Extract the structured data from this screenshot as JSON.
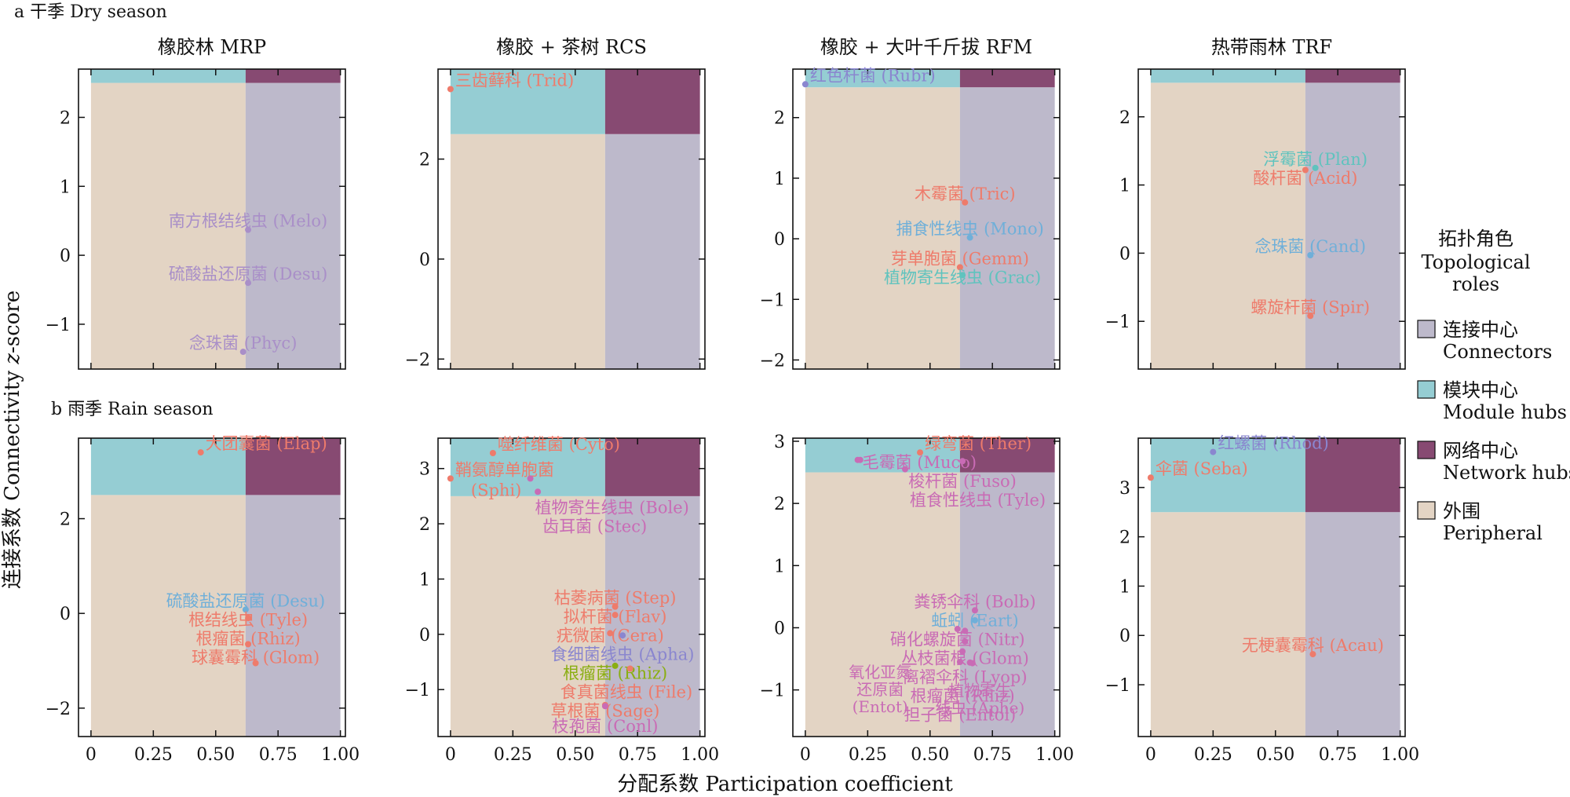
{
  "figure": {
    "row_labels": [
      "a 干季 Dry season",
      "b 雨季 Rain season"
    ],
    "xlabel": "分配系数 Participation coefficient",
    "ylabel_prefix": "连接系数 Connectivity ",
    "ylabel_italic": "z",
    "ylabel_suffix": "-score",
    "x_tick_labels": [
      "0",
      "0.25",
      "0.50",
      "0.75",
      "1.00"
    ]
  },
  "colors": {
    "peripheral": "#E3D4C4",
    "connectors": "#BDB9CB",
    "module_hubs": "#95CDD3",
    "network_hubs": "#874A72",
    "red": "#EE7B6B",
    "purple": "#A98FC8",
    "teal": "#5FC3BE",
    "blue": "#6FAFD9",
    "violet": "#8A86CF",
    "pink": "#C96BB5",
    "green": "#8AAE12"
  },
  "legend": {
    "title_cn": "拓扑角色",
    "title_en_1": "Topological",
    "title_en_2": "roles",
    "items": [
      {
        "cn": "连接中心",
        "en": "Connectors",
        "color": "#BDB9CB"
      },
      {
        "cn": "模块中心",
        "en": "Module hubs",
        "color": "#95CDD3"
      },
      {
        "cn": "网络中心",
        "en": "Network hubs",
        "color": "#874A72"
      },
      {
        "cn": "外围",
        "en": "Peripheral",
        "color": "#E3D4C4"
      }
    ]
  },
  "chart_data": [
    {
      "type": "scatter",
      "title": "橡胶林 MRP",
      "season": "Dry",
      "xlim": [
        -0.05,
        1.02
      ],
      "ylim": [
        -1.65,
        2.7
      ],
      "y_ticks": [
        -1,
        0,
        1,
        2
      ],
      "points": [
        {
          "x": 0.63,
          "y": 0.37,
          "label": "南方根结线虫 (Melo)",
          "color": "purple"
        },
        {
          "x": 0.63,
          "y": -0.4,
          "label": "硫酸盐还原菌 (Desu)",
          "color": "purple"
        },
        {
          "x": 0.61,
          "y": -1.4,
          "label": "念珠菌 (Phyc)",
          "color": "purple"
        }
      ]
    },
    {
      "type": "scatter",
      "title": "橡胶 + 茶树 RCS",
      "season": "Dry",
      "xlim": [
        -0.05,
        1.02
      ],
      "ylim": [
        -2.2,
        3.8
      ],
      "y_ticks": [
        -2,
        0,
        2
      ],
      "points": [
        {
          "x": 0.0,
          "y": 3.4,
          "label": "三齿藓科 (Trid)",
          "color": "red"
        }
      ]
    },
    {
      "type": "scatter",
      "title": "橡胶 + 大叶千斤拔 RFM",
      "season": "Dry",
      "xlim": [
        -0.05,
        1.02
      ],
      "ylim": [
        -2.15,
        2.8
      ],
      "y_ticks": [
        -2,
        -1,
        0,
        1,
        2
      ],
      "points": [
        {
          "x": 0.0,
          "y": 2.55,
          "label": "红色杆菌 (Rubr)",
          "color": "violet"
        },
        {
          "x": 0.64,
          "y": 0.6,
          "label": "木霉菌 (Tric)",
          "color": "red"
        },
        {
          "x": 0.66,
          "y": 0.02,
          "label": "捕食性线虫 (Mono)",
          "color": "blue"
        },
        {
          "x": 0.62,
          "y": -0.47,
          "label": "芽单胞菌 (Gemm)",
          "color": "red"
        },
        {
          "x": 0.63,
          "y": -0.6,
          "label": "植物寄生线虫 (Grac)",
          "color": "teal"
        }
      ]
    },
    {
      "type": "scatter",
      "title": "热带雨林 TRF",
      "season": "Dry",
      "xlim": [
        -0.05,
        1.02
      ],
      "ylim": [
        -1.7,
        2.7
      ],
      "y_ticks": [
        -1,
        0,
        1,
        2
      ],
      "points": [
        {
          "x": 0.66,
          "y": 1.25,
          "label": "浮霉菌 (Plan)",
          "color": "teal"
        },
        {
          "x": 0.62,
          "y": 1.22,
          "label": "酸杆菌 (Acid)",
          "color": "red"
        },
        {
          "x": 0.64,
          "y": -0.03,
          "label": "念珠菌 (Cand)",
          "color": "blue"
        },
        {
          "x": 0.64,
          "y": -0.92,
          "label": "螺旋杆菌 (Spir)",
          "color": "red"
        }
      ]
    },
    {
      "type": "scatter",
      "title": "",
      "season": "Rain",
      "xlim": [
        -0.05,
        1.02
      ],
      "ylim": [
        -2.6,
        3.7
      ],
      "y_ticks": [
        -2,
        0,
        2
      ],
      "points": [
        {
          "x": 0.44,
          "y": 3.4,
          "label": "大团囊菌 (Elap)",
          "color": "red"
        },
        {
          "x": 0.62,
          "y": 0.08,
          "label": "硫酸盐还原菌 (Desu)",
          "color": "blue"
        },
        {
          "x": 0.63,
          "y": -0.1,
          "label": "根结线虫 (Tyle)",
          "color": "red"
        },
        {
          "x": 0.63,
          "y": -0.65,
          "label": "根瘤菌 (Rhiz)",
          "color": "red"
        },
        {
          "x": 0.66,
          "y": -1.05,
          "label": "球囊霉科 (Glom)",
          "color": "red"
        }
      ]
    },
    {
      "type": "scatter",
      "title": "",
      "season": "Rain",
      "xlim": [
        -0.05,
        1.02
      ],
      "ylim": [
        -1.85,
        3.55
      ],
      "y_ticks": [
        -1,
        0,
        1,
        2,
        3
      ],
      "points": [
        {
          "x": 0.17,
          "y": 3.28,
          "label": "噬纤维菌 (Cyto)",
          "color": "red"
        },
        {
          "x": 0.0,
          "y": 2.82,
          "label": "鞘氨醇单胞菌",
          "label2": "(Sphi)",
          "color": "red"
        },
        {
          "x": 0.32,
          "y": 2.82,
          "label": "植物寄生线虫 (Bole)",
          "color": "pink"
        },
        {
          "x": 0.35,
          "y": 2.58,
          "label": "齿耳菌 (Stec)",
          "color": "pink"
        },
        {
          "x": 0.66,
          "y": 0.5,
          "label": "枯萎病菌 (Step)",
          "color": "red"
        },
        {
          "x": 0.66,
          "y": 0.35,
          "label": "拟杆菌 (Flav)",
          "color": "red"
        },
        {
          "x": 0.64,
          "y": 0.02,
          "label": "疣微菌 (Cera)",
          "color": "red"
        },
        {
          "x": 0.69,
          "y": -0.02,
          "label": "食细菌线虫 (Apha)",
          "color": "violet"
        },
        {
          "x": 0.66,
          "y": -0.57,
          "label": "根瘤菌 (Rhiz)",
          "color": "green"
        },
        {
          "x": 0.72,
          "y": -0.62,
          "label": "食真菌线虫 (File)",
          "color": "red"
        },
        {
          "x": 0.62,
          "y": -1.28,
          "label": "草根菌 (Sage)",
          "color": "red"
        },
        {
          "x": 0.62,
          "y": -1.3,
          "label": "枝孢菌 (Conl)",
          "color": "pink"
        }
      ]
    },
    {
      "type": "scatter",
      "title": "",
      "season": "Rain",
      "xlim": [
        -0.05,
        1.02
      ],
      "ylim": [
        -1.75,
        3.05
      ],
      "y_ticks": [
        -1,
        0,
        1,
        2,
        3
      ],
      "points": [
        {
          "x": 0.46,
          "y": 2.82,
          "label": "绿弯菌 (Ther)",
          "color": "red"
        },
        {
          "x": 0.21,
          "y": 2.7,
          "label": "毛霉菌 (Muco)",
          "color": "pink"
        },
        {
          "x": 0.22,
          "y": 2.7,
          "label": "",
          "color": "pink"
        },
        {
          "x": 0.63,
          "y": 2.68,
          "label": "梭杆菌 (Fuso)",
          "color": "pink"
        },
        {
          "x": 0.4,
          "y": 2.55,
          "label": "植食性线虫 (Tyle)",
          "color": "pink"
        },
        {
          "x": 0.68,
          "y": 0.28,
          "label": "粪锈伞科 (Bolb)",
          "color": "pink"
        },
        {
          "x": 0.68,
          "y": 0.12,
          "label": "蚯蚓 (Eart)",
          "color": "blue"
        },
        {
          "x": 0.61,
          "y": -0.02,
          "label": "硝化螺旋菌 (Nitr)",
          "color": "pink"
        },
        {
          "x": 0.64,
          "y": -0.05,
          "label": "丛枝菌根 (Glom)",
          "color": "pink"
        },
        {
          "x": 0.64,
          "y": -0.22,
          "label": "离褶伞科 (Lyop)",
          "color": "pink"
        },
        {
          "x": 0.63,
          "y": -0.38,
          "label": "根瘤菌 (Rhiz)",
          "color": "pink"
        },
        {
          "x": 0.62,
          "y": -0.55,
          "label": "担子菌 (Entol)",
          "color": "pink"
        },
        {
          "x": 0.66,
          "y": -0.56,
          "label": "",
          "color": "pink"
        },
        {
          "x": 0.67,
          "y": -0.57,
          "label": "",
          "color": "pink"
        }
      ],
      "text_blocks": [
        {
          "lines": [
            "氧化亚氮",
            "还原菌",
            "(Entot)"
          ],
          "x": 0.3,
          "y": -0.8
        },
        {
          "lines": [
            "植物寄生",
            "线虫 (Aphe)"
          ],
          "x": 0.7,
          "y": -1.1
        }
      ]
    },
    {
      "type": "scatter",
      "title": "",
      "season": "Rain",
      "xlim": [
        -0.05,
        1.02
      ],
      "ylim": [
        -2.05,
        4.0
      ],
      "y_ticks": [
        -1,
        0,
        1,
        2,
        3
      ],
      "points": [
        {
          "x": 0.25,
          "y": 3.72,
          "label": "红螺菌 (Rhod)",
          "color": "violet"
        },
        {
          "x": 0.0,
          "y": 3.2,
          "label": "伞菌 (Seba)",
          "color": "red"
        },
        {
          "x": 0.65,
          "y": -0.38,
          "label": "无梗囊霉科 (Acau)",
          "color": "red"
        }
      ]
    }
  ]
}
